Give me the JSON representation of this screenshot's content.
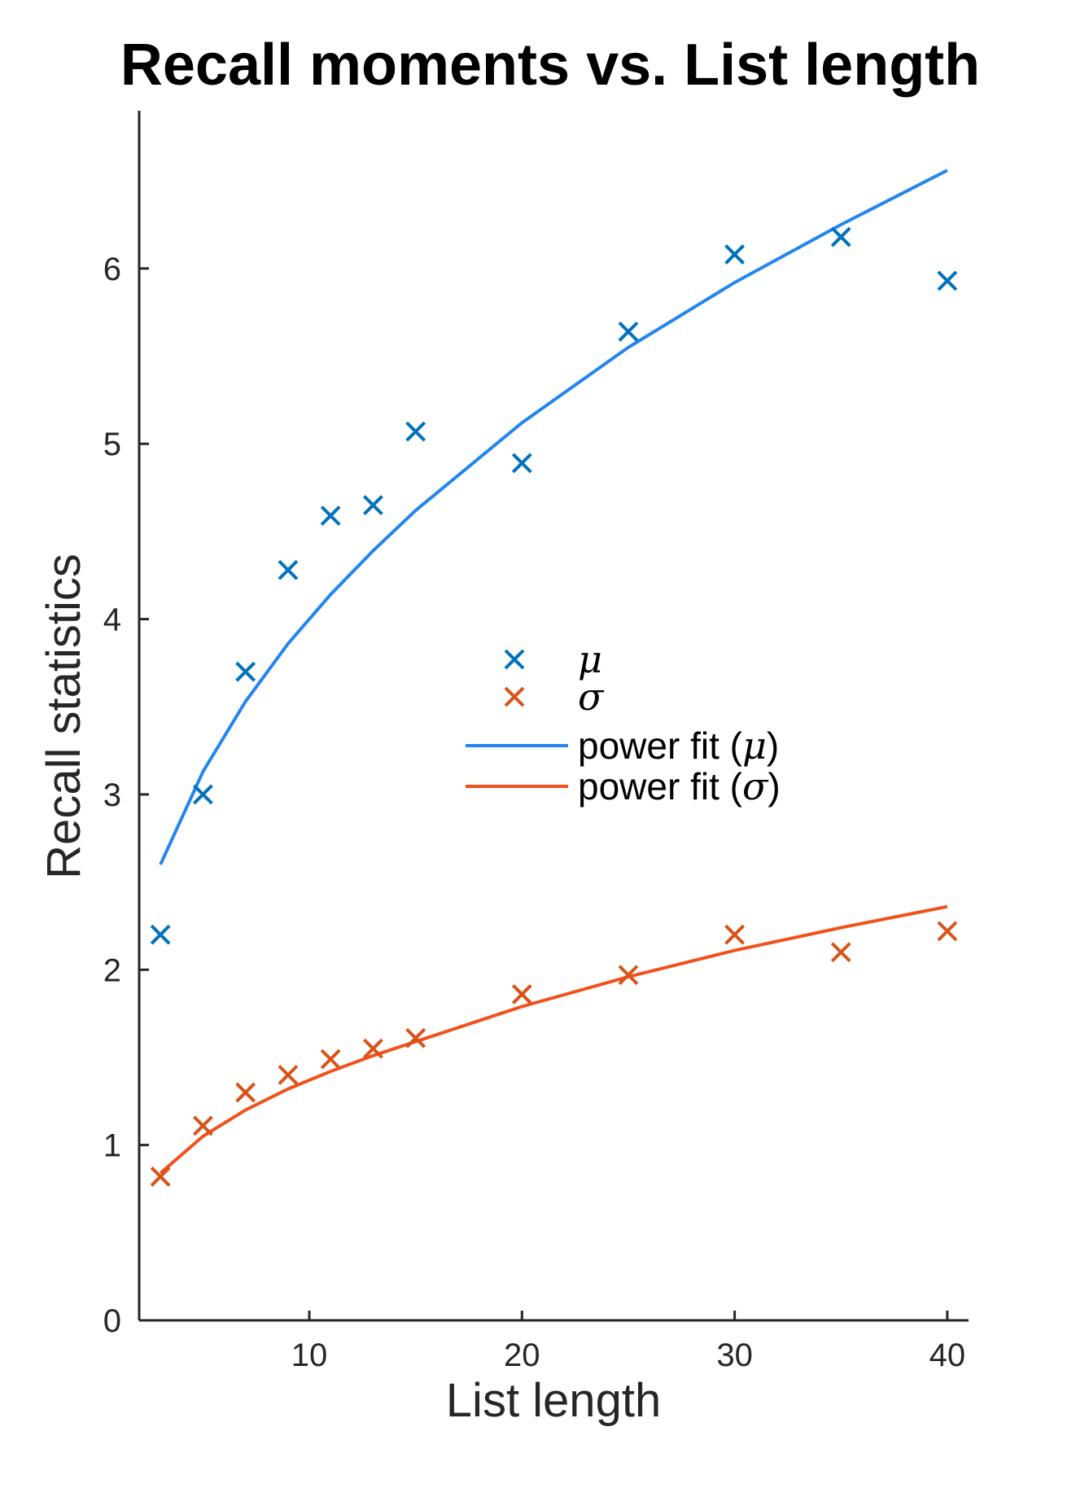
{
  "chart_data": {
    "type": "scatter",
    "title": "Recall moments vs. List length",
    "xlabel": "List length",
    "ylabel": "Recall statistics",
    "xlim": [
      2,
      41
    ],
    "ylim": [
      0,
      6.9
    ],
    "x_ticks": [
      "10",
      "20",
      "30",
      "40"
    ],
    "y_ticks": [
      "0",
      "1",
      "2",
      "3",
      "4",
      "5",
      "6"
    ],
    "legend_position": "center",
    "series": [
      {
        "name": "μ",
        "kind": "markers",
        "color": "#0072BD",
        "x": [
          3,
          5,
          7,
          9,
          11,
          13,
          15,
          20,
          25,
          30,
          35,
          40
        ],
        "y": [
          2.2,
          3.0,
          3.7,
          4.28,
          4.59,
          4.65,
          5.07,
          4.89,
          5.64,
          6.08,
          6.18,
          5.93
        ]
      },
      {
        "name": "σ",
        "kind": "markers",
        "color": "#D95319",
        "x": [
          3,
          5,
          7,
          9,
          11,
          13,
          15,
          20,
          25,
          30,
          35,
          40
        ],
        "y": [
          0.82,
          1.11,
          1.3,
          1.4,
          1.49,
          1.55,
          1.61,
          1.86,
          1.97,
          2.2,
          2.1,
          2.22
        ]
      },
      {
        "name": "power fit (μ)",
        "kind": "line",
        "color": "#2285F0",
        "x": [
          3,
          5,
          7,
          9,
          11,
          13,
          15,
          20,
          25,
          30,
          35,
          40
        ],
        "y": [
          2.6,
          3.13,
          3.53,
          3.86,
          4.14,
          4.39,
          4.62,
          5.12,
          5.55,
          5.92,
          6.25,
          6.56
        ]
      },
      {
        "name": "power fit (σ)",
        "kind": "line",
        "color": "#F2511B",
        "x": [
          3,
          5,
          7,
          9,
          11,
          13,
          15,
          20,
          25,
          30,
          35,
          40
        ],
        "y": [
          0.84,
          1.05,
          1.2,
          1.32,
          1.42,
          1.51,
          1.59,
          1.79,
          1.96,
          2.11,
          2.24,
          2.36
        ]
      }
    ],
    "legend": [
      {
        "symbol": "μ",
        "text": ""
      },
      {
        "symbol": "σ",
        "text": ""
      },
      {
        "symbol": "μ",
        "text": "power fit ("
      },
      {
        "symbol": "σ",
        "text": "power fit ("
      }
    ]
  }
}
